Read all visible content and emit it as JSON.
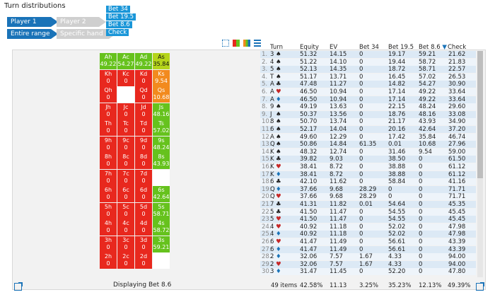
{
  "window": {
    "title": "Turn distributions"
  },
  "tabs_player": [
    {
      "label": "Player 1",
      "active": true
    },
    {
      "label": "Player 2",
      "active": false
    }
  ],
  "tabs_range": [
    {
      "label": "Entire range",
      "active": true
    },
    {
      "label": "Specific hand",
      "active": false
    }
  ],
  "actions": [
    "Bet 34",
    "Bet 19.5",
    "Bet 8.6",
    "Check"
  ],
  "grid_status": "Displaying Bet 8.6",
  "colors": {
    "tab_active": "#1a73b8",
    "action": "#1a96d8",
    "red": "#e8281e",
    "green": "#66c21d",
    "orange": "#f28a1e",
    "lime": "#b5d41b"
  },
  "table": {
    "headers": [
      "Turn",
      "Equity",
      "EV",
      "Bet 34",
      "Bet 19.5",
      "Bet 8.6",
      "Check"
    ],
    "sort_indicator": "▼",
    "rows": [
      [
        "1.",
        "3",
        "s",
        "51.32",
        "14.15",
        "0",
        "19.17",
        "59.21",
        "21.62"
      ],
      [
        "2.",
        "4",
        "s",
        "51.22",
        "14.10",
        "0",
        "19.44",
        "58.72",
        "21.83"
      ],
      [
        "3.",
        "5",
        "s",
        "52.13",
        "14.35",
        "0",
        "18.72",
        "58.71",
        "22.57"
      ],
      [
        "4.",
        "T",
        "s",
        "51.17",
        "13.71",
        "0",
        "16.45",
        "57.02",
        "26.53"
      ],
      [
        "5.",
        "A",
        "c",
        "47.48",
        "11.27",
        "0",
        "14.82",
        "54.27",
        "30.90"
      ],
      [
        "6.",
        "A",
        "h",
        "46.50",
        "10.94",
        "0",
        "17.14",
        "49.22",
        "33.64"
      ],
      [
        "7.",
        "A",
        "d",
        "46.50",
        "10.94",
        "0",
        "17.14",
        "49.22",
        "33.64"
      ],
      [
        "8.",
        "9",
        "s",
        "49.19",
        "13.63",
        "0",
        "22.15",
        "48.24",
        "29.60"
      ],
      [
        "9.",
        "J",
        "s",
        "50.37",
        "13.56",
        "0",
        "18.76",
        "48.16",
        "33.08"
      ],
      [
        "10.",
        "8",
        "s",
        "50.70",
        "13.74",
        "0",
        "21.17",
        "43.93",
        "34.90"
      ],
      [
        "11.",
        "6",
        "s",
        "52.17",
        "14.04",
        "0",
        "20.16",
        "42.64",
        "37.20"
      ],
      [
        "12.",
        "A",
        "s",
        "49.60",
        "12.29",
        "0",
        "17.42",
        "35.84",
        "46.74"
      ],
      [
        "13.",
        "Q",
        "s",
        "50.86",
        "14.84",
        "61.35",
        "0.01",
        "10.68",
        "27.96"
      ],
      [
        "14.",
        "K",
        "s",
        "48.32",
        "12.74",
        "0",
        "31.46",
        "9.54",
        "59.00"
      ],
      [
        "15.",
        "K",
        "c",
        "39.82",
        "9.03",
        "0",
        "38.50",
        "0",
        "61.50"
      ],
      [
        "16.",
        "K",
        "h",
        "38.41",
        "8.72",
        "0",
        "38.88",
        "0",
        "61.12"
      ],
      [
        "17.",
        "K",
        "d",
        "38.41",
        "8.72",
        "0",
        "38.88",
        "0",
        "61.12"
      ],
      [
        "18.",
        "6",
        "c",
        "42.10",
        "11.62",
        "0",
        "58.84",
        "0",
        "41.16"
      ],
      [
        "19.",
        "Q",
        "d",
        "37.66",
        "9.68",
        "28.29",
        "0",
        "0",
        "71.71"
      ],
      [
        "20.",
        "Q",
        "h",
        "37.66",
        "9.68",
        "28.29",
        "0",
        "0",
        "71.71"
      ],
      [
        "21.",
        "7",
        "c",
        "41.31",
        "11.82",
        "0.01",
        "54.64",
        "0",
        "45.35"
      ],
      [
        "22.",
        "5",
        "c",
        "41.50",
        "11.47",
        "0",
        "54.55",
        "0",
        "45.45"
      ],
      [
        "23.",
        "5",
        "h",
        "41.50",
        "11.47",
        "0",
        "54.55",
        "0",
        "45.45"
      ],
      [
        "24.",
        "4",
        "h",
        "40.92",
        "11.18",
        "0",
        "52.02",
        "0",
        "47.98"
      ],
      [
        "25.",
        "4",
        "d",
        "40.92",
        "11.18",
        "0",
        "52.02",
        "0",
        "47.98"
      ],
      [
        "26.",
        "6",
        "h",
        "41.47",
        "11.49",
        "0",
        "56.61",
        "0",
        "43.39"
      ],
      [
        "27.",
        "6",
        "d",
        "41.47",
        "11.49",
        "0",
        "56.61",
        "0",
        "43.39"
      ],
      [
        "28.",
        "2",
        "d",
        "32.06",
        "7.57",
        "1.67",
        "4.33",
        "0",
        "94.00"
      ],
      [
        "29.",
        "2",
        "h",
        "32.06",
        "7.57",
        "1.67",
        "4.33",
        "0",
        "94.00"
      ],
      [
        "30.",
        "3",
        "d",
        "31.47",
        "11.45",
        "0",
        "52.20",
        "0",
        "47.80"
      ]
    ],
    "footer": [
      "49 items",
      "42.58%",
      "11.13",
      "3.25%",
      "35.23%",
      "12.13%",
      "49.39%"
    ]
  },
  "cards": [
    [
      "Ah",
      "49.22",
      "green"
    ],
    [
      "Ac",
      "54.27",
      "green"
    ],
    [
      "Ad",
      "49.22",
      "green"
    ],
    [
      "As",
      "35.84",
      "lime"
    ],
    [
      "Kh",
      "0",
      "red"
    ],
    [
      "Kc",
      "0",
      "red"
    ],
    [
      "Kd",
      "0",
      "red"
    ],
    [
      "Ks",
      "9.54",
      "orange"
    ],
    [
      "Qh",
      "0",
      "red"
    ],
    [
      "",
      "",
      "empty"
    ],
    [
      "Qd",
      "0",
      "red"
    ],
    [
      "Qs",
      "10.68",
      "orange"
    ],
    [
      "Jh",
      "0",
      "red"
    ],
    [
      "Jc",
      "0",
      "red"
    ],
    [
      "Jd",
      "0",
      "red"
    ],
    [
      "Js",
      "48.16",
      "green"
    ],
    [
      "Th",
      "0",
      "red"
    ],
    [
      "Tc",
      "0",
      "red"
    ],
    [
      "Td",
      "0",
      "red"
    ],
    [
      "Ts",
      "57.02",
      "green"
    ],
    [
      "9h",
      "0",
      "red"
    ],
    [
      "9c",
      "0",
      "red"
    ],
    [
      "9d",
      "0",
      "red"
    ],
    [
      "9s",
      "48.24",
      "green"
    ],
    [
      "8h",
      "0",
      "red"
    ],
    [
      "8c",
      "0",
      "red"
    ],
    [
      "8d",
      "0",
      "red"
    ],
    [
      "8s",
      "43.93",
      "green"
    ],
    [
      "7h",
      "0",
      "red"
    ],
    [
      "7c",
      "0",
      "red"
    ],
    [
      "7d",
      "0",
      "red"
    ],
    [
      "",
      "",
      "empty"
    ],
    [
      "6h",
      "0",
      "red"
    ],
    [
      "6c",
      "0",
      "red"
    ],
    [
      "6d",
      "0",
      "red"
    ],
    [
      "6s",
      "42.64",
      "green"
    ],
    [
      "5h",
      "0",
      "red"
    ],
    [
      "5c",
      "0",
      "red"
    ],
    [
      "5d",
      "0",
      "red"
    ],
    [
      "5s",
      "58.71",
      "green"
    ],
    [
      "4h",
      "0",
      "red"
    ],
    [
      "4c",
      "0",
      "red"
    ],
    [
      "4d",
      "0",
      "red"
    ],
    [
      "4s",
      "58.72",
      "green"
    ],
    [
      "3h",
      "0",
      "red"
    ],
    [
      "3c",
      "0",
      "red"
    ],
    [
      "3d",
      "0",
      "red"
    ],
    [
      "3s",
      "59.21",
      "green"
    ],
    [
      "2h",
      "0",
      "red"
    ],
    [
      "2c",
      "0",
      "red"
    ],
    [
      "2d",
      "0",
      "red"
    ],
    [
      "",
      "",
      "empty"
    ]
  ],
  "icons": {
    "popout": "popout-icon",
    "chart_modes": [
      "scatter-icon",
      "grid-color-icon",
      "bar-chart-icon",
      "table-icon"
    ]
  }
}
